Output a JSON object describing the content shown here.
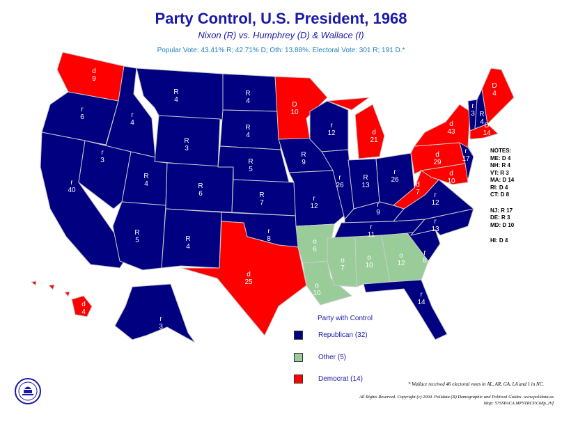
{
  "header": {
    "title": "Party Control, U.S. President, 1968",
    "subtitle": "Nixon (R) vs. Humphrey (D) & Wallace (I)",
    "vote_line": "Popular Vote: 43.41% R; 42.71% D; Oth: 13.88%. Electoral Vote: 301 R; 191 D.*"
  },
  "colors": {
    "republican": "#000080",
    "democrat": "#ff0000",
    "other": "#99cc99",
    "border": "#cccccc"
  },
  "states": {
    "wa": {
      "party": "d",
      "ev": "9"
    },
    "or": {
      "party": "r",
      "ev": "6"
    },
    "ca": {
      "party": "r",
      "ev": "40"
    },
    "id": {
      "party": "r",
      "ev": "4"
    },
    "nv": {
      "party": "r",
      "ev": "3"
    },
    "mt": {
      "party": "R",
      "ev": "4"
    },
    "wy": {
      "party": "R",
      "ev": "3"
    },
    "ut": {
      "party": "R",
      "ev": "4"
    },
    "az": {
      "party": "R",
      "ev": "5"
    },
    "co": {
      "party": "R",
      "ev": "6"
    },
    "nm": {
      "party": "R",
      "ev": "4"
    },
    "nd": {
      "party": "R",
      "ev": "4"
    },
    "sd": {
      "party": "R",
      "ev": "4"
    },
    "ne": {
      "party": "R",
      "ev": "5"
    },
    "ks": {
      "party": "R",
      "ev": "7"
    },
    "ok": {
      "party": "r",
      "ev": "8"
    },
    "tx": {
      "party": "d",
      "ev": "25"
    },
    "mn": {
      "party": "D",
      "ev": "10"
    },
    "ia": {
      "party": "R",
      "ev": "9"
    },
    "mo": {
      "party": "r",
      "ev": "12"
    },
    "ar": {
      "party": "o",
      "ev": "6"
    },
    "la": {
      "party": "o",
      "ev": "10"
    },
    "wi": {
      "party": "r",
      "ev": "12"
    },
    "il": {
      "party": "r",
      "ev": "26"
    },
    "mi": {
      "party": "d",
      "ev": "21"
    },
    "in": {
      "party": "R",
      "ev": "13"
    },
    "oh": {
      "party": "r",
      "ev": "26"
    },
    "ky": {
      "party": "r",
      "ev": "9"
    },
    "tn": {
      "party": "r",
      "ev": "11"
    },
    "ms": {
      "party": "o",
      "ev": "7"
    },
    "al": {
      "party": "o",
      "ev": "10"
    },
    "ga": {
      "party": "o",
      "ev": "12"
    },
    "fl": {
      "party": "r",
      "ev": "14"
    },
    "sc": {
      "party": "r",
      "ev": "8"
    },
    "nc": {
      "party": "r",
      "ev": "13"
    },
    "va": {
      "party": "r",
      "ev": "12"
    },
    "wv": {
      "party": "d",
      "ev": "7"
    },
    "pa": {
      "party": "d",
      "ev": "29"
    },
    "ny": {
      "party": "d",
      "ev": "43"
    },
    "vt": {
      "party": "r",
      "ev": "3"
    },
    "nh": {
      "party": "R",
      "ev": "4"
    },
    "me": {
      "party": "D",
      "ev": "4"
    },
    "ma": {
      "party": "D",
      "ev": "14"
    },
    "nj": {
      "party": "r",
      "ev": "17"
    },
    "md": {
      "party": "d",
      "ev": "10"
    },
    "ak": {
      "party": "r",
      "ev": "3"
    },
    "hi": {
      "party": "d",
      "ev": "4"
    }
  },
  "notes": {
    "title": "NOTES:",
    "block1": [
      "ME: D 4",
      "NH: R 4",
      "VT: R 3",
      "MA: D 14",
      "RI: D 4",
      "CT: D 8"
    ],
    "block2": [
      "NJ: R 17",
      "DE: R 3",
      "MD: D 10"
    ],
    "block3": [
      "HI: D 4"
    ]
  },
  "legend": {
    "title": "Party with Control",
    "items": [
      {
        "label": "Republican (32)",
        "color": "#000080"
      },
      {
        "label": "Other (5)",
        "color": "#99cc99"
      },
      {
        "label": "Democrat (14)",
        "color": "#ff0000"
      }
    ]
  },
  "footer": {
    "footnote": "* Wallace received 46 electoral votes in AL, AR, GA, LA and 1 in NC.",
    "copyright_line1": "All Rights Reserved. Copyright (c) 2004. Polidata (R) Demographic and Political Guides. www.polidata.us",
    "copyright_line2": "Map: 57SSPACA.MPSTRCP.C68p_IVf"
  }
}
